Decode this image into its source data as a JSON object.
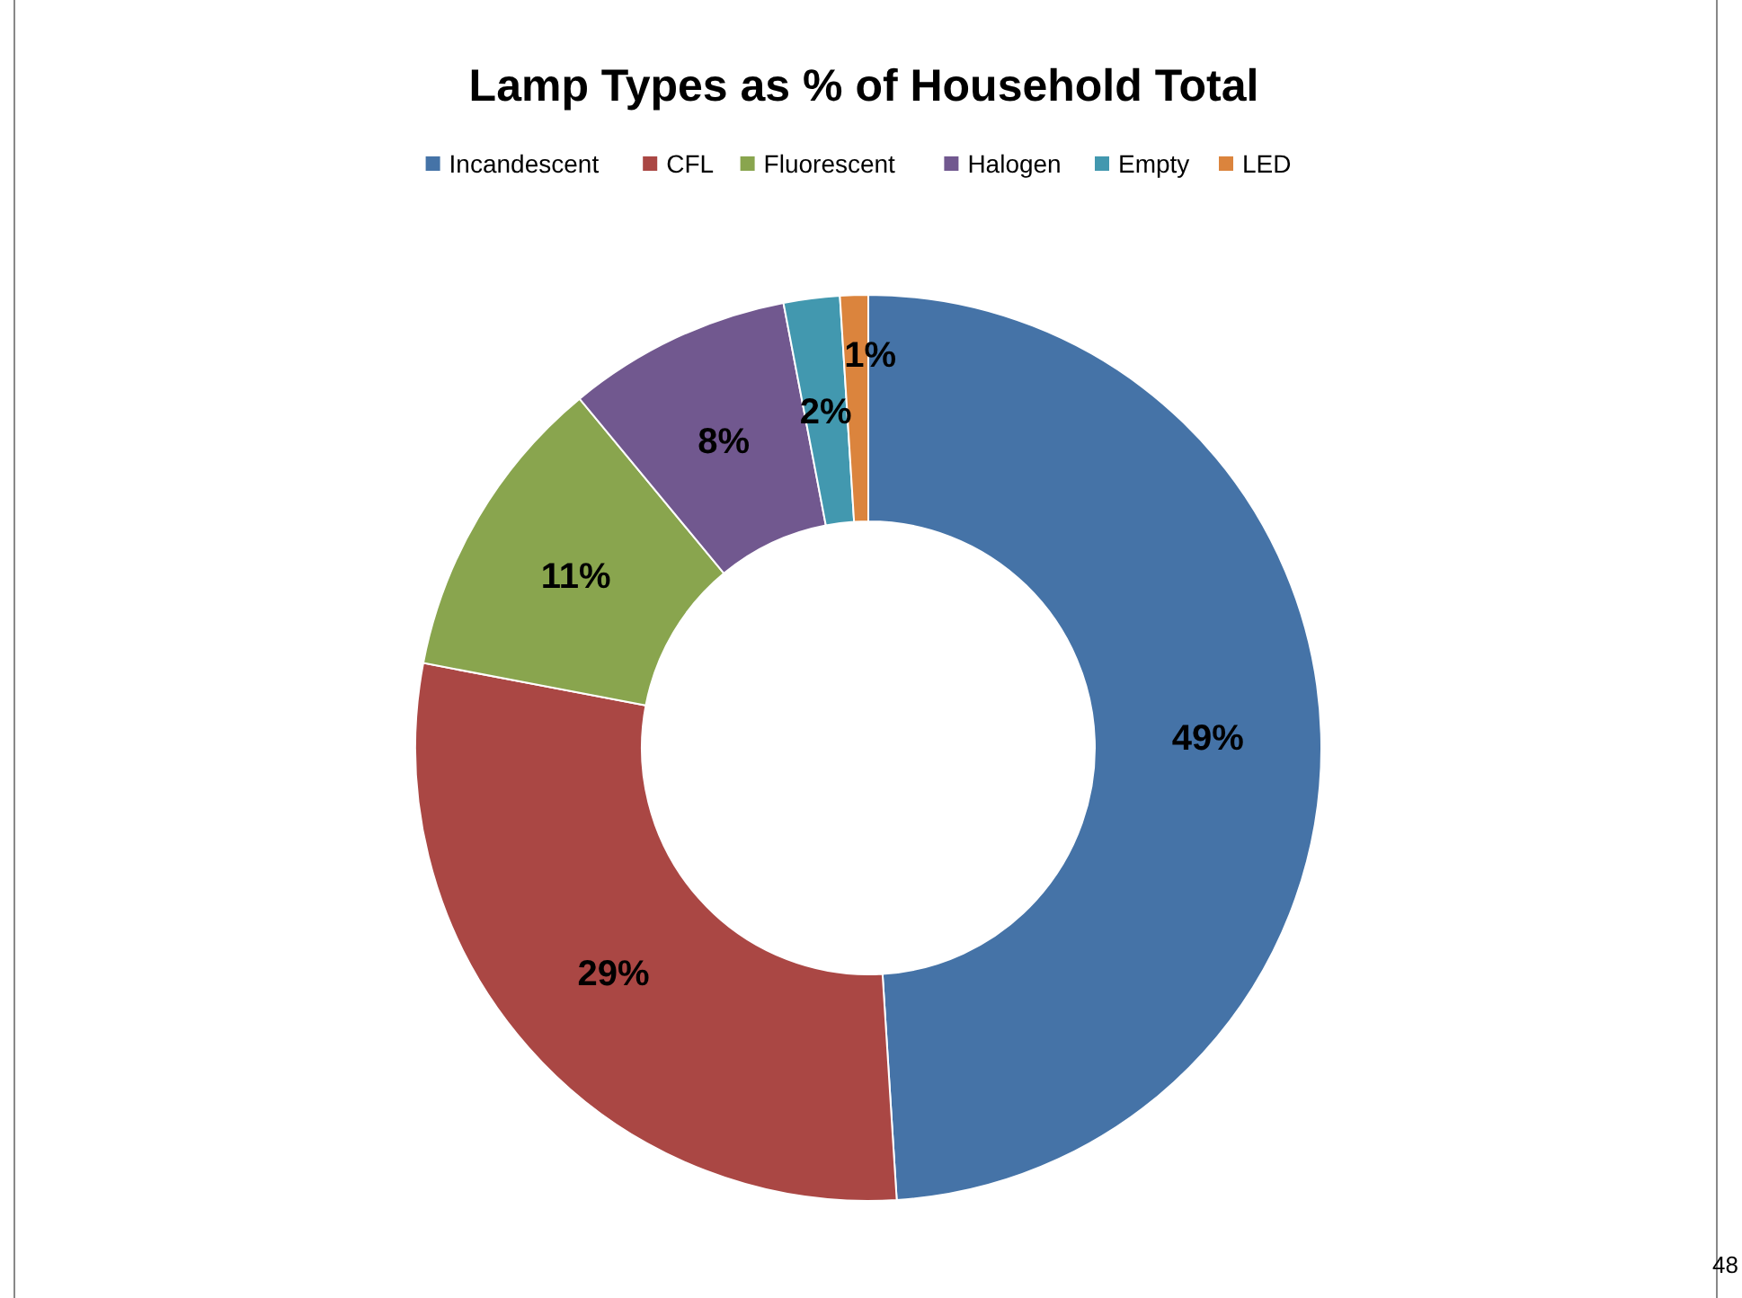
{
  "chart_data": {
    "type": "donut",
    "title": "Lamp Types as % of Household Total",
    "categories": [
      "Incandescent",
      "CFL",
      "Fluorescent",
      "Halogen",
      "Empty",
      "LED"
    ],
    "values": [
      49,
      29,
      11,
      8,
      2,
      1
    ],
    "colors": [
      "#4573a7",
      "#aa4744",
      "#89a54e",
      "#71588f",
      "#4298af",
      "#db843d"
    ],
    "value_labels": [
      "49%",
      "29%",
      "11%",
      "8%",
      "2%",
      "1%"
    ],
    "legend": "top",
    "annotations": [
      "48"
    ]
  }
}
